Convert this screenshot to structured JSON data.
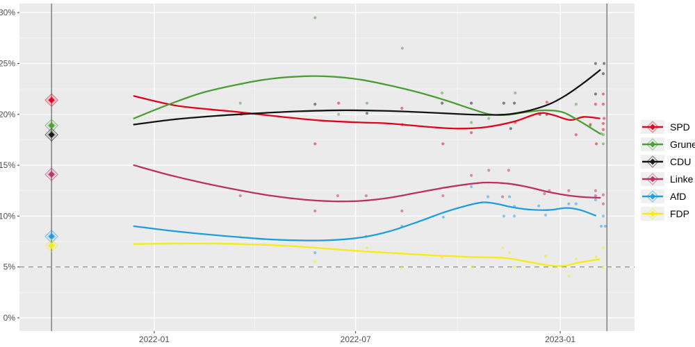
{
  "legend": {
    "items": [
      {
        "label": "SPD"
      },
      {
        "label": "Grune"
      },
      {
        "label": "CDU"
      },
      {
        "label": "Linke"
      },
      {
        "label": "AfD"
      },
      {
        "label": "FDP"
      }
    ]
  },
  "chart_data": {
    "type": "line",
    "title": "",
    "xlabel": "",
    "ylabel": "",
    "grid": true,
    "legend_position": "right",
    "panel_background": "#ebebeb",
    "grid_color": "#ffffff",
    "axis_text_color": "#4d4d4d",
    "x_axis": {
      "range": [
        2021.668,
        2023.183
      ],
      "ticks": [
        {
          "value": 2022.0,
          "label": "2022-01"
        },
        {
          "value": 2022.496,
          "label": "2022-07"
        },
        {
          "value": 2023.0,
          "label": "2023-01"
        }
      ],
      "minor_ticks": [
        2022.247,
        2022.747
      ]
    },
    "y_axis": {
      "range": [
        -1.3,
        30.9
      ],
      "unit": "%",
      "ticks": [
        {
          "value": 0,
          "label": "0%"
        },
        {
          "value": 5,
          "label": "5%"
        },
        {
          "value": 10,
          "label": "10%"
        },
        {
          "value": 15,
          "label": "15%"
        },
        {
          "value": 20,
          "label": "20%"
        },
        {
          "value": 25,
          "label": "25%"
        },
        {
          "value": 30,
          "label": "30%"
        }
      ],
      "minor_ticks": [
        2.5,
        7.5,
        12.5,
        17.5,
        22.5,
        27.5
      ]
    },
    "threshold_line": {
      "value": 5,
      "style": "dashed",
      "color": "#8f8f8f"
    },
    "event_lines": [
      {
        "x": 2021.747,
        "name": "election-2021",
        "color": "#63636b"
      },
      {
        "x": 2023.115,
        "name": "election-2023",
        "color": "#63636b"
      }
    ],
    "election_results": [
      {
        "party": "SPD",
        "value": 21.4
      },
      {
        "party": "Grune",
        "value": 18.9
      },
      {
        "party": "CDU",
        "value": 18.0
      },
      {
        "party": "Linke",
        "value": 14.1
      },
      {
        "party": "AfD",
        "value": 8.0
      },
      {
        "party": "FDP",
        "value": 7.1
      }
    ],
    "series": [
      {
        "name": "SPD",
        "color": "#e3001b",
        "trend": [
          [
            2021.95,
            21.8
          ],
          [
            2022.048,
            20.9
          ],
          [
            2022.134,
            20.5
          ],
          [
            2022.202,
            20.25
          ],
          [
            2022.305,
            19.8
          ],
          [
            2022.408,
            19.4
          ],
          [
            2022.51,
            19.2
          ],
          [
            2022.579,
            19.1
          ],
          [
            2022.681,
            18.75
          ],
          [
            2022.75,
            18.6
          ],
          [
            2022.818,
            18.75
          ],
          [
            2022.887,
            19.3
          ],
          [
            2022.947,
            20.1
          ],
          [
            2022.981,
            19.95
          ],
          [
            2023.024,
            19.45
          ],
          [
            2023.058,
            19.75
          ],
          [
            2023.097,
            19.6
          ]
        ],
        "polls": [
          [
            2022.214,
            20.0
          ],
          [
            2022.396,
            17.1
          ],
          [
            2022.454,
            21.1
          ],
          [
            2022.61,
            20.6
          ],
          [
            2022.611,
            19.0
          ],
          [
            2022.711,
            17.1
          ],
          [
            2022.781,
            18.2
          ],
          [
            2022.889,
            19.2
          ],
          [
            2022.967,
            21.2
          ],
          [
            2023.039,
            18.0
          ],
          [
            2023.074,
            19.0
          ],
          [
            2023.087,
            21.0
          ],
          [
            2023.089,
            17.1
          ],
          [
            2023.106,
            22.0
          ],
          [
            2023.106,
            21.0
          ],
          [
            2023.106,
            19.1
          ],
          [
            2023.106,
            18.5
          ],
          [
            2023.108,
            19.6
          ]
        ]
      },
      {
        "name": "Grune",
        "color": "#4a9e33",
        "trend": [
          [
            2021.95,
            19.6
          ],
          [
            2022.031,
            20.9
          ],
          [
            2022.116,
            22.1
          ],
          [
            2022.202,
            22.9
          ],
          [
            2022.288,
            23.5
          ],
          [
            2022.373,
            23.75
          ],
          [
            2022.442,
            23.7
          ],
          [
            2022.51,
            23.4
          ],
          [
            2022.579,
            22.85
          ],
          [
            2022.647,
            22.2
          ],
          [
            2022.716,
            21.4
          ],
          [
            2022.784,
            20.5
          ],
          [
            2022.827,
            20.0
          ],
          [
            2022.87,
            19.95
          ],
          [
            2022.921,
            20.25
          ],
          [
            2022.964,
            20.4
          ],
          [
            2023.007,
            20.2
          ],
          [
            2023.049,
            19.3
          ],
          [
            2023.098,
            18.1
          ]
        ],
        "polls": [
          [
            2022.212,
            21.1
          ],
          [
            2022.396,
            29.5
          ],
          [
            2022.454,
            20.0
          ],
          [
            2022.524,
            21.1
          ],
          [
            2022.611,
            26.5
          ],
          [
            2022.709,
            22.1
          ],
          [
            2022.781,
            19.2
          ],
          [
            2022.824,
            19.6
          ],
          [
            2022.889,
            22.1
          ],
          [
            2023.039,
            21.0
          ],
          [
            2023.074,
            18.9
          ],
          [
            2023.101,
            18.1
          ],
          [
            2023.106,
            18.0
          ],
          [
            2023.106,
            17.1
          ]
        ]
      },
      {
        "name": "CDU",
        "color": "#141414",
        "trend": [
          [
            2021.95,
            19.0
          ],
          [
            2022.048,
            19.5
          ],
          [
            2022.151,
            19.85
          ],
          [
            2022.253,
            20.1
          ],
          [
            2022.356,
            20.3
          ],
          [
            2022.459,
            20.4
          ],
          [
            2022.562,
            20.35
          ],
          [
            2022.664,
            20.2
          ],
          [
            2022.767,
            20.0
          ],
          [
            2022.818,
            19.95
          ],
          [
            2022.87,
            20.0
          ],
          [
            2022.921,
            20.35
          ],
          [
            2022.973,
            21.0
          ],
          [
            2023.015,
            21.9
          ],
          [
            2023.058,
            23.1
          ],
          [
            2023.098,
            24.35
          ]
        ],
        "polls": [
          [
            2022.396,
            21.0
          ],
          [
            2022.524,
            20.1
          ],
          [
            2022.709,
            21.1
          ],
          [
            2022.781,
            21.1
          ],
          [
            2022.861,
            21.1
          ],
          [
            2022.878,
            18.6
          ],
          [
            2022.887,
            21.1
          ],
          [
            2022.95,
            20.0
          ],
          [
            2022.967,
            20.0
          ],
          [
            2023.087,
            25.0
          ],
          [
            2023.087,
            22.0
          ],
          [
            2023.106,
            24.0
          ],
          [
            2023.108,
            25.0
          ]
        ]
      },
      {
        "name": "Linke",
        "color": "#bd3064",
        "trend": [
          [
            2021.95,
            15.0
          ],
          [
            2022.031,
            14.1
          ],
          [
            2022.116,
            13.3
          ],
          [
            2022.202,
            12.6
          ],
          [
            2022.288,
            12.0
          ],
          [
            2022.373,
            11.6
          ],
          [
            2022.442,
            11.45
          ],
          [
            2022.51,
            11.5
          ],
          [
            2022.579,
            11.8
          ],
          [
            2022.647,
            12.3
          ],
          [
            2022.716,
            12.8
          ],
          [
            2022.776,
            13.15
          ],
          [
            2022.818,
            13.3
          ],
          [
            2022.87,
            13.2
          ],
          [
            2022.921,
            12.85
          ],
          [
            2022.973,
            12.35
          ],
          [
            2023.024,
            12.0
          ],
          [
            2023.066,
            11.85
          ],
          [
            2023.098,
            11.8
          ]
        ],
        "polls": [
          [
            2022.212,
            12.0
          ],
          [
            2022.396,
            10.5
          ],
          [
            2022.452,
            12.0
          ],
          [
            2022.522,
            12.0
          ],
          [
            2022.61,
            10.5
          ],
          [
            2022.711,
            12.0
          ],
          [
            2022.781,
            14.0
          ],
          [
            2022.824,
            14.5
          ],
          [
            2022.858,
            11.9
          ],
          [
            2022.873,
            14.5
          ],
          [
            2022.961,
            12.2
          ],
          [
            2022.973,
            12.5
          ],
          [
            2023.021,
            12.5
          ],
          [
            2023.087,
            12.5
          ],
          [
            2023.087,
            12.0
          ],
          [
            2023.106,
            12.1
          ],
          [
            2023.106,
            11.2
          ]
        ]
      },
      {
        "name": "AfD",
        "color": "#1f9ede",
        "trend": [
          [
            2021.95,
            9.0
          ],
          [
            2022.031,
            8.6
          ],
          [
            2022.116,
            8.25
          ],
          [
            2022.202,
            7.95
          ],
          [
            2022.288,
            7.7
          ],
          [
            2022.373,
            7.6
          ],
          [
            2022.442,
            7.65
          ],
          [
            2022.51,
            7.9
          ],
          [
            2022.579,
            8.5
          ],
          [
            2022.647,
            9.4
          ],
          [
            2022.716,
            10.4
          ],
          [
            2022.767,
            11.0
          ],
          [
            2022.81,
            11.35
          ],
          [
            2022.844,
            11.2
          ],
          [
            2022.878,
            10.9
          ],
          [
            2022.921,
            10.65
          ],
          [
            2022.973,
            10.6
          ],
          [
            2023.015,
            10.8
          ],
          [
            2023.049,
            10.6
          ],
          [
            2023.087,
            10.05
          ]
        ],
        "polls": [
          [
            2022.396,
            6.4
          ],
          [
            2022.522,
            8.0
          ],
          [
            2022.61,
            9.0
          ],
          [
            2022.712,
            9.9
          ],
          [
            2022.781,
            12.9
          ],
          [
            2022.822,
            11.9
          ],
          [
            2022.861,
            10.0
          ],
          [
            2022.875,
            11.9
          ],
          [
            2022.887,
            10.95
          ],
          [
            2022.887,
            10.0
          ],
          [
            2022.947,
            11.0
          ],
          [
            2022.964,
            10.1
          ],
          [
            2023.021,
            11.2
          ],
          [
            2023.039,
            11.2
          ],
          [
            2023.087,
            11.6
          ],
          [
            2023.101,
            9.0
          ],
          [
            2023.106,
            10.0
          ],
          [
            2023.111,
            9.0
          ]
        ]
      },
      {
        "name": "FDP",
        "color": "#f7ec13",
        "trend": [
          [
            2021.95,
            7.25
          ],
          [
            2022.048,
            7.3
          ],
          [
            2022.151,
            7.3
          ],
          [
            2022.253,
            7.2
          ],
          [
            2022.339,
            7.05
          ],
          [
            2022.425,
            6.8
          ],
          [
            2022.51,
            6.55
          ],
          [
            2022.596,
            6.35
          ],
          [
            2022.681,
            6.15
          ],
          [
            2022.767,
            6.0
          ],
          [
            2022.818,
            5.95
          ],
          [
            2022.87,
            5.85
          ],
          [
            2022.921,
            5.5
          ],
          [
            2022.973,
            5.15
          ],
          [
            2023.007,
            5.1
          ],
          [
            2023.049,
            5.45
          ],
          [
            2023.096,
            5.75
          ]
        ],
        "polls": [
          [
            2022.212,
            8.0
          ],
          [
            2022.396,
            5.5
          ],
          [
            2022.524,
            6.9
          ],
          [
            2022.61,
            5.0
          ],
          [
            2022.709,
            5.9
          ],
          [
            2022.784,
            5.0
          ],
          [
            2022.858,
            6.9
          ],
          [
            2022.875,
            6.4
          ],
          [
            2022.887,
            5.0
          ],
          [
            2022.964,
            6.05
          ],
          [
            2023.022,
            4.1
          ],
          [
            2023.039,
            5.8
          ],
          [
            2023.089,
            6.0
          ],
          [
            2023.106,
            6.9
          ],
          [
            2023.106,
            5.0
          ]
        ]
      }
    ]
  }
}
